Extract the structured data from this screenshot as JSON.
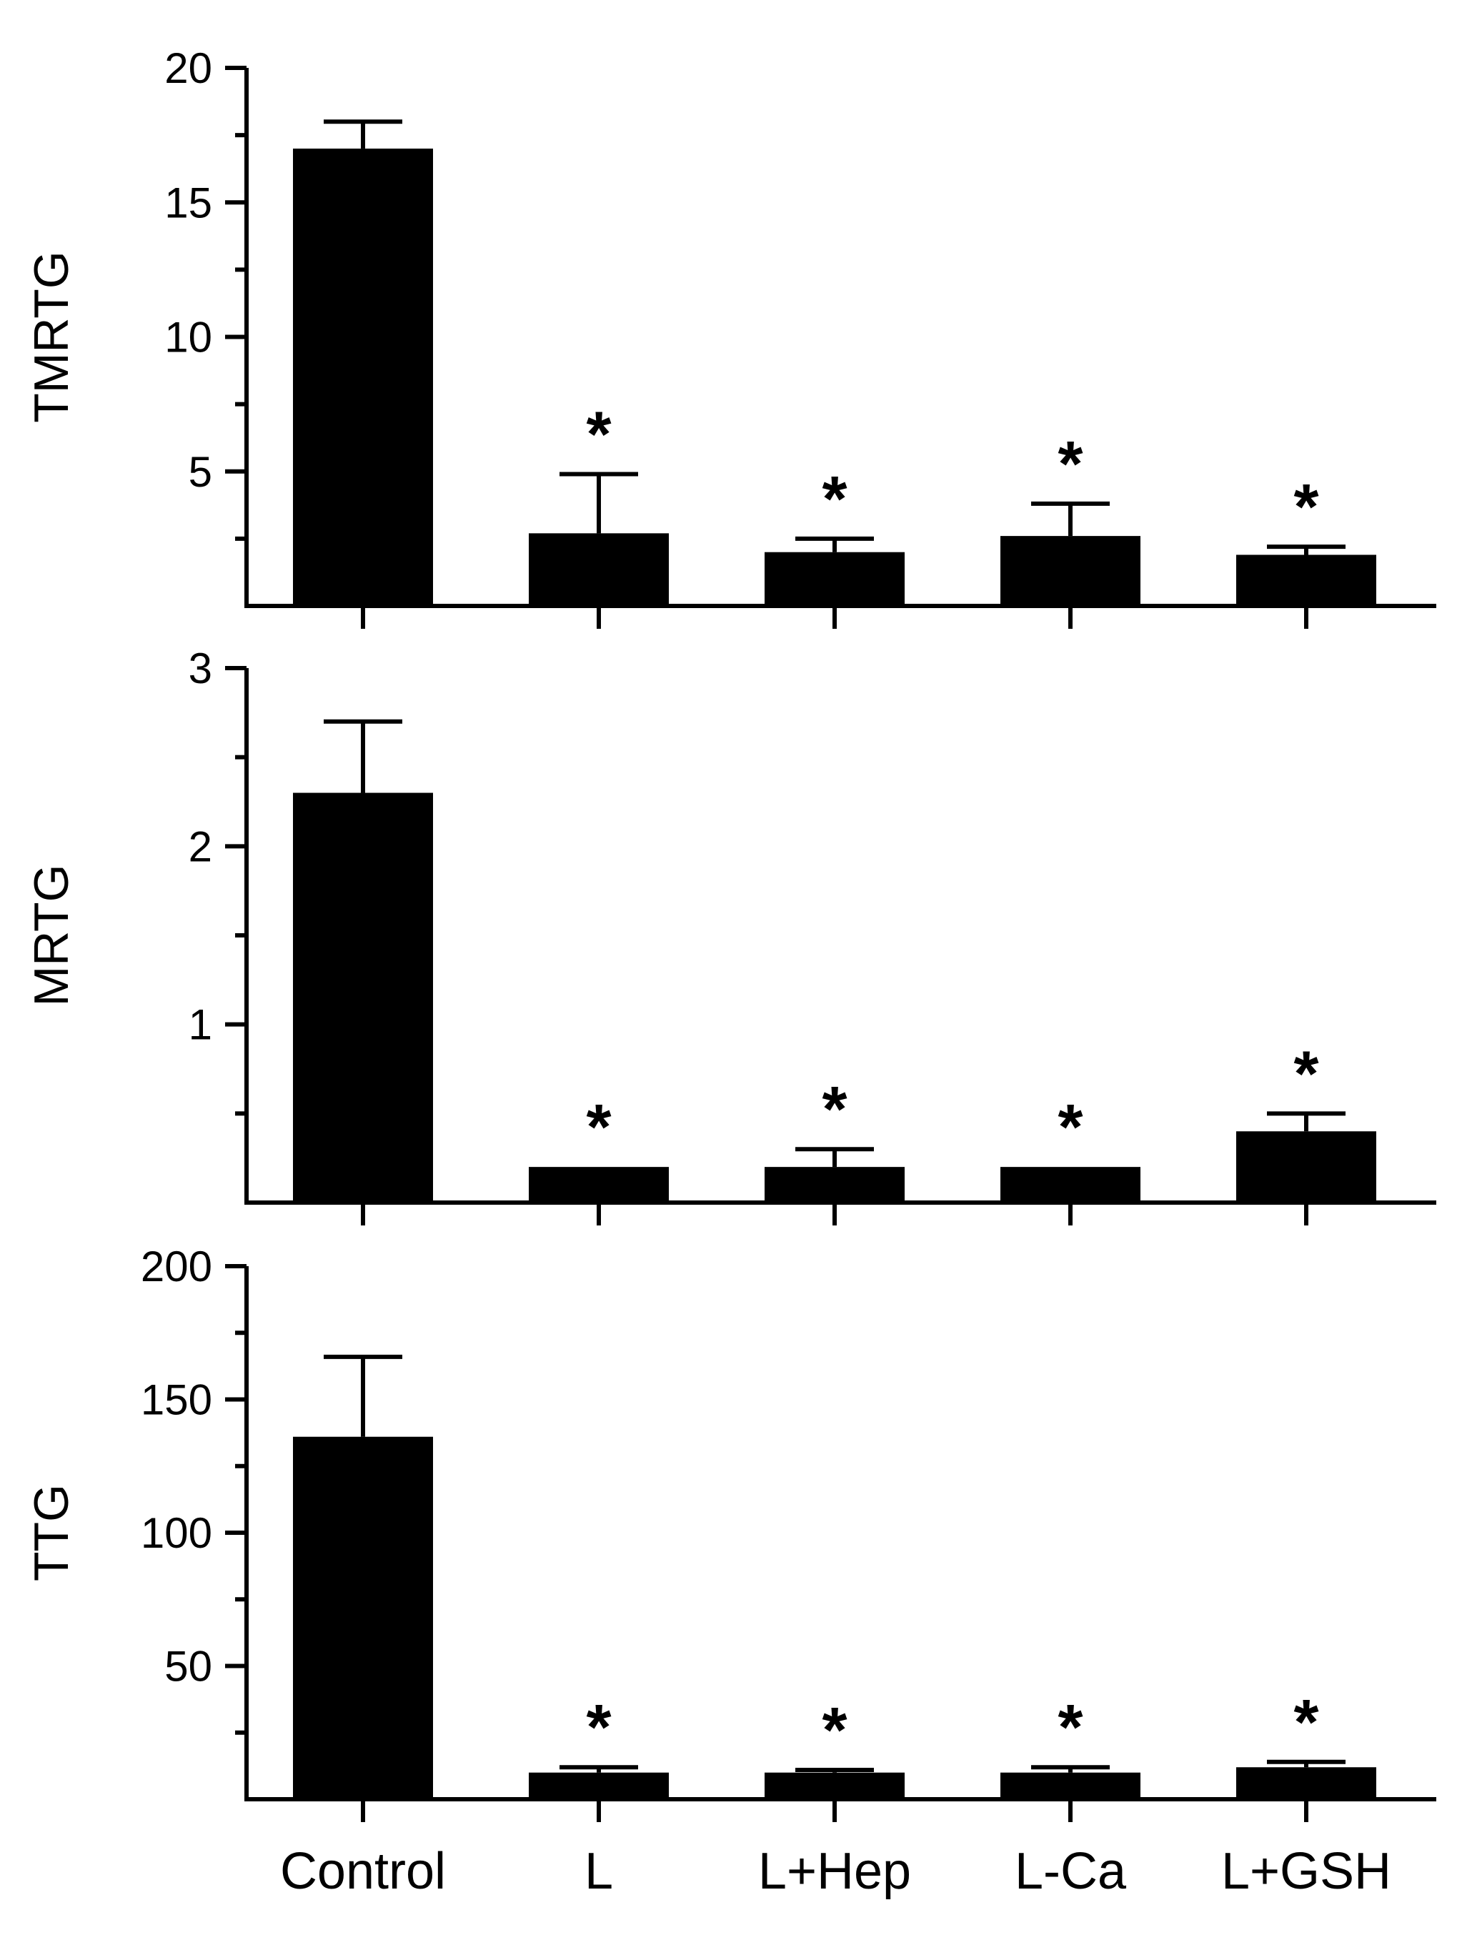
{
  "chart_data": [
    {
      "type": "bar",
      "ylabel": "TMRTG",
      "ylim": [
        0,
        20
      ],
      "yticks": [
        5,
        10,
        15,
        20
      ],
      "categories": [
        "Control",
        "L",
        "L+Hep",
        "L-Ca",
        "L+GSH"
      ],
      "values": [
        17.0,
        2.7,
        2.0,
        2.6,
        1.9
      ],
      "errors": [
        1.0,
        2.2,
        0.5,
        1.2,
        0.3
      ],
      "significance": [
        "",
        "*",
        "*",
        "*",
        "*"
      ],
      "show_category_labels": false
    },
    {
      "type": "bar",
      "ylabel": "MRTG",
      "ylim": [
        0,
        3
      ],
      "yticks": [
        1,
        2,
        3
      ],
      "categories": [
        "Control",
        "L",
        "L+Hep",
        "L-Ca",
        "L+GSH"
      ],
      "values": [
        2.3,
        0.2,
        0.2,
        0.2,
        0.4
      ],
      "errors": [
        0.4,
        0,
        0.1,
        0,
        0.1
      ],
      "significance": [
        "",
        "*",
        "*",
        "*",
        "*"
      ],
      "show_category_labels": false
    },
    {
      "type": "bar",
      "ylabel": "TTG",
      "ylim": [
        0,
        200
      ],
      "yticks": [
        50,
        100,
        150,
        200
      ],
      "categories": [
        "Control",
        "L",
        "L+Hep",
        "L-Ca",
        "L+GSH"
      ],
      "values": [
        136,
        10,
        10,
        10,
        12
      ],
      "errors": [
        30,
        2,
        1,
        2,
        2
      ],
      "significance": [
        "",
        "*",
        "*",
        "*",
        "*"
      ],
      "show_category_labels": true
    }
  ],
  "colors": {
    "bar": "#000000",
    "axis": "#000000",
    "background": "#ffffff"
  }
}
